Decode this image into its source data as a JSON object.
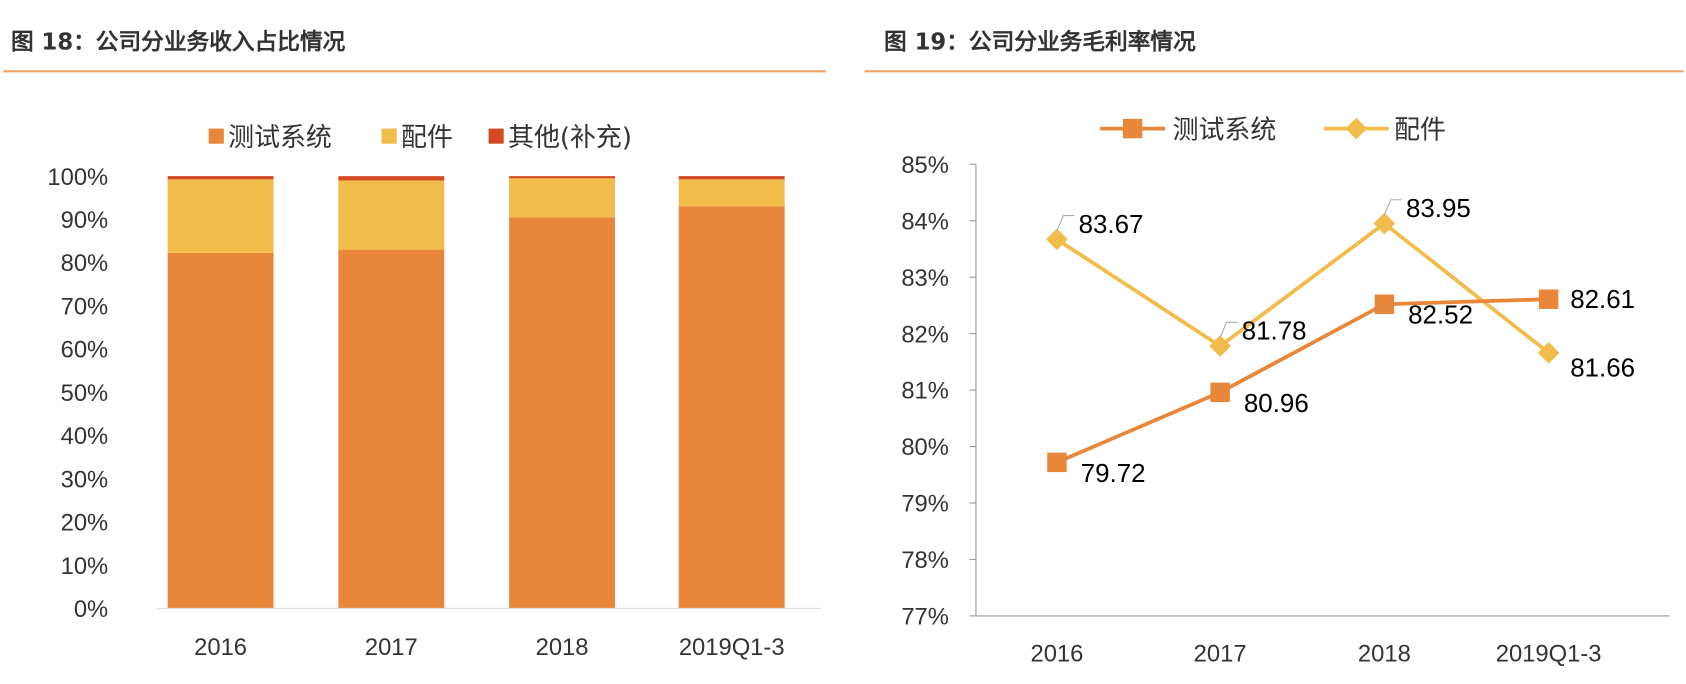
{
  "chart_data": [
    {
      "type": "bar",
      "stacked": true,
      "title": "图 18：公司分业务收入占比情况",
      "categories": [
        "2016",
        "2017",
        "2018",
        "2019Q1-3"
      ],
      "series": [
        {
          "name": "测试系统",
          "values": [
            82.25,
            83,
            90.5,
            93
          ],
          "color": "#E8873A"
        },
        {
          "name": "配件",
          "values": [
            17,
            16,
            9,
            6.25
          ],
          "color": "#F2BC4A"
        },
        {
          "name": "其他(补充)",
          "values": [
            0.75,
            1,
            0.5,
            0.75
          ],
          "color": "#D24A22"
        }
      ],
      "yticks": [
        "0%",
        "10%",
        "20%",
        "30%",
        "40%",
        "50%",
        "60%",
        "70%",
        "80%",
        "90%",
        "100%"
      ],
      "ylim": [
        0,
        100
      ],
      "legend": "top",
      "grid": false
    },
    {
      "type": "line",
      "title": "图 19：公司分业务毛利率情况",
      "categories": [
        "2016",
        "2017",
        "2018",
        "2019Q1-3"
      ],
      "series": [
        {
          "name": "测试系统",
          "values": [
            79.72,
            80.96,
            82.52,
            82.61
          ],
          "labels": [
            "79.72",
            "80.96",
            "82.52",
            "82.61"
          ],
          "color": "#E8873A",
          "marker": "square"
        },
        {
          "name": "配件",
          "values": [
            83.67,
            81.78,
            83.95,
            81.66
          ],
          "labels": [
            "83.67",
            "81.78",
            "83.95",
            "81.66"
          ],
          "color": "#F2BC4A",
          "marker": "diamond"
        }
      ],
      "yticks": [
        "77%",
        "78%",
        "79%",
        "80%",
        "81%",
        "82%",
        "83%",
        "84%",
        "85%"
      ],
      "ylim": [
        77,
        85
      ],
      "legend": "top",
      "grid": false
    }
  ]
}
